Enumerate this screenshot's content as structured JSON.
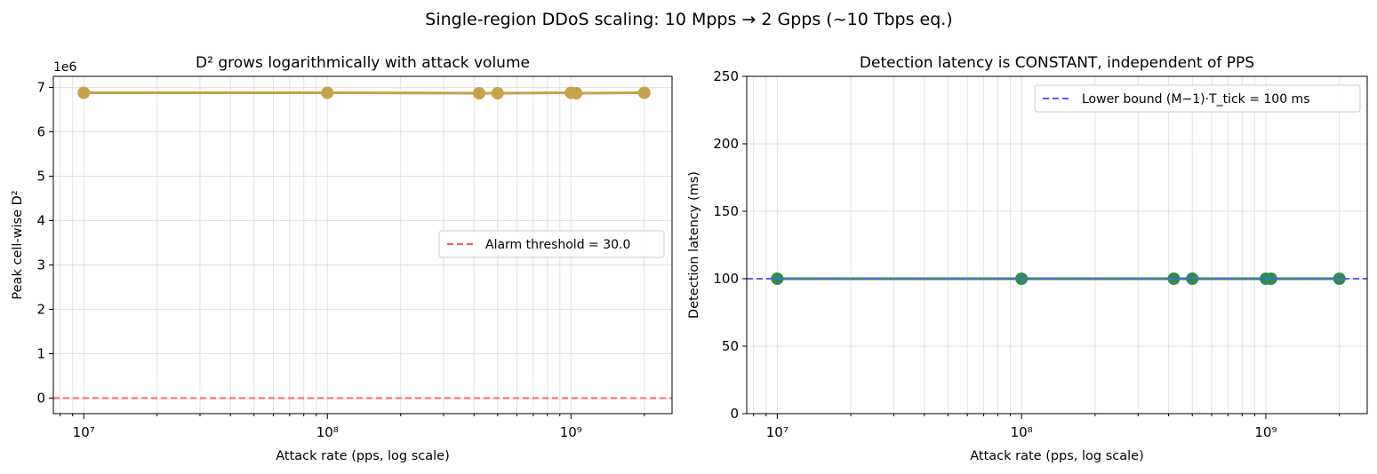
{
  "suptitle": "Single-region DDoS scaling: 10 Mpps → 2 Gpps (~10 Tbps eq.)",
  "chart_data": [
    {
      "type": "line",
      "title": "D² grows logarithmically with attack volume",
      "xlabel": "Attack rate (pps, log scale)",
      "ylabel": "Peak cell-wise D²",
      "x_scale": "log",
      "xlim": [
        7500000.0,
        2600000000.0
      ],
      "ylim": [
        -350000,
        7250000
      ],
      "y_offset_label": "1e6",
      "x_ticks": [
        {
          "value": 10000000.0,
          "label": "10⁷"
        },
        {
          "value": 100000000.0,
          "label": "10⁸"
        },
        {
          "value": 1000000000.0,
          "label": "10⁹"
        }
      ],
      "y_ticks": [
        {
          "value": 0,
          "label": "0"
        },
        {
          "value": 1000000,
          "label": "1"
        },
        {
          "value": 2000000,
          "label": "2"
        },
        {
          "value": 3000000,
          "label": "3"
        },
        {
          "value": 4000000,
          "label": "4"
        },
        {
          "value": 5000000,
          "label": "5"
        },
        {
          "value": 6000000,
          "label": "6"
        },
        {
          "value": 7000000,
          "label": "7"
        }
      ],
      "grid": true,
      "series": [
        {
          "color": "#c8a24a",
          "marker": "circle",
          "x": [
            10000000.0,
            100000000.0,
            420000000.0,
            500000000.0,
            1000000000.0,
            1050000000.0,
            2000000000.0
          ],
          "y": [
            6880000,
            6880000,
            6870000,
            6870000,
            6880000,
            6870000,
            6880000
          ]
        }
      ],
      "hlines": [
        {
          "name": "Alarm threshold = 30.0",
          "y": 30.0,
          "color": "#ff5a5a",
          "style": "dashed"
        }
      ],
      "legend": {
        "position": "center-right",
        "entries": [
          "Alarm threshold = 30.0"
        ]
      }
    },
    {
      "type": "line",
      "title": "Detection latency is CONSTANT, independent of PPS",
      "xlabel": "Attack rate (pps, log scale)",
      "ylabel": "Detection latency (ms)",
      "x_scale": "log",
      "xlim": [
        7500000.0,
        2600000000.0
      ],
      "ylim": [
        0,
        250
      ],
      "x_ticks": [
        {
          "value": 10000000.0,
          "label": "10⁷"
        },
        {
          "value": 100000000.0,
          "label": "10⁸"
        },
        {
          "value": 1000000000.0,
          "label": "10⁹"
        }
      ],
      "y_ticks": [
        {
          "value": 0,
          "label": "0"
        },
        {
          "value": 50,
          "label": "50"
        },
        {
          "value": 100,
          "label": "100"
        },
        {
          "value": 150,
          "label": "150"
        },
        {
          "value": 200,
          "label": "200"
        },
        {
          "value": 250,
          "label": "250"
        }
      ],
      "grid": true,
      "series": [
        {
          "color": "#2e8b57",
          "marker": "circle",
          "x": [
            10000000.0,
            100000000.0,
            420000000.0,
            500000000.0,
            1000000000.0,
            1050000000.0,
            2000000000.0
          ],
          "y": [
            100,
            100,
            100,
            100,
            100,
            100,
            100
          ]
        }
      ],
      "hlines": [
        {
          "name": "Lower bound (M−1)·T_tick = 100 ms",
          "y": 100,
          "color": "#5a5aff",
          "style": "dashed"
        }
      ],
      "legend": {
        "position": "top-right",
        "entries": [
          "Lower bound (M−1)·T_tick = 100 ms"
        ]
      }
    }
  ]
}
